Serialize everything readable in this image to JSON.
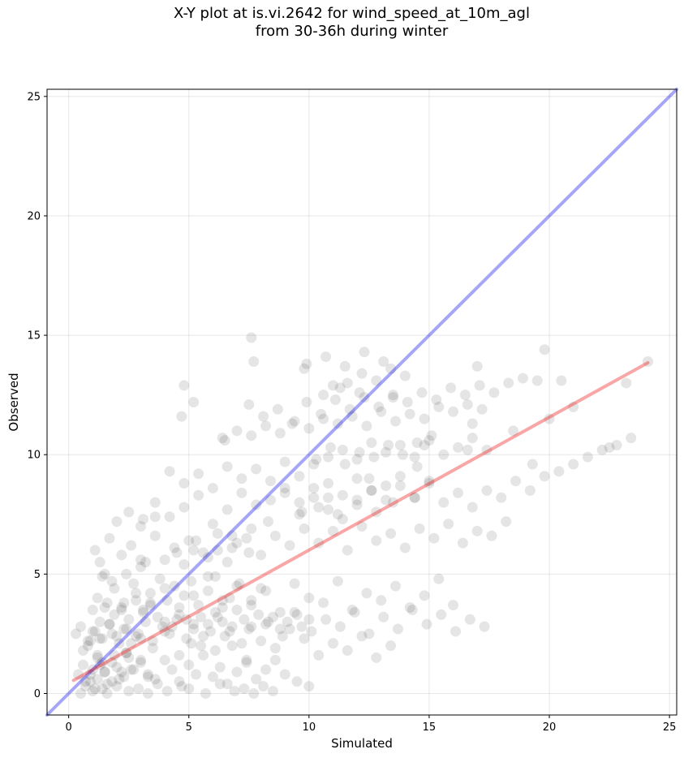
{
  "chart_data": {
    "type": "scatter",
    "title_lines": [
      "X-Y plot at is.vi.2642 for wind_speed_at_10m_agl",
      "from 30-36h during winter"
    ],
    "xlabel": "Simulated",
    "ylabel": "Observed",
    "xlim": [
      -0.9,
      25.3
    ],
    "ylim": [
      -0.9,
      25.3
    ],
    "xticks": [
      0,
      5,
      10,
      15,
      20,
      25
    ],
    "yticks": [
      0,
      5,
      10,
      15,
      20,
      25
    ],
    "grid": true,
    "point_color": "#000000",
    "point_alpha": 0.1,
    "series": [
      {
        "type": "scatter",
        "x": [
          1.0,
          1.2,
          1.4,
          1.5,
          1.8,
          2.0,
          2.3,
          2.5,
          0.7,
          0.9,
          1.1,
          1.3,
          1.6,
          1.9,
          2.2,
          2.6,
          3.0,
          3.3,
          3.6,
          4.0,
          4.3,
          4.6,
          5.0,
          5.3,
          5.6,
          6.0,
          6.3,
          6.6,
          7.0,
          7.4,
          7.8,
          8.2,
          8.6,
          9.0,
          9.5,
          10.0,
          0.8,
          1.0,
          1.3,
          1.7,
          2.1,
          2.4,
          2.8,
          3.2,
          3.5,
          3.9,
          4.2,
          4.5,
          4.9,
          5.2,
          5.5,
          5.9,
          6.2,
          6.5,
          6.8,
          7.2,
          7.5,
          1.2,
          1.5,
          1.9,
          2.3,
          2.7,
          3.1,
          3.4,
          3.8,
          4.1,
          4.4,
          4.8,
          5.1,
          5.4,
          5.8,
          6.1,
          6.4,
          6.7,
          7.1,
          7.6,
          8.0,
          0.5,
          0.7,
          1.0,
          1.4,
          1.6,
          2.0,
          2.5,
          2.9,
          3.3,
          3.7,
          4.1,
          4.7,
          5.0,
          5.7,
          6.3,
          6.9,
          7.3,
          7.7,
          8.1,
          8.5,
          1.1,
          1.3,
          1.7,
          2.2,
          2.6,
          3.0,
          3.6,
          4.0,
          4.4,
          4.8,
          5.3,
          5.8,
          6.2,
          6.6,
          7.0,
          7.5,
          0.6,
          0.9,
          1.2,
          1.8,
          2.4,
          3.0,
          3.5,
          4.0,
          4.6,
          5.1,
          5.6,
          6.1,
          6.8,
          7.4,
          8.0,
          8.6,
          9.2,
          9.8,
          10.4,
          11.0,
          11.6,
          12.2,
          12.8,
          13.4,
          1.5,
          2.0,
          2.5,
          3.0,
          3.6,
          4.2,
          4.8,
          5.4,
          6.0,
          6.6,
          7.2,
          7.8,
          8.4,
          9.0,
          9.6,
          10.2,
          10.8,
          11.4,
          12.0,
          12.6,
          13.2,
          13.8,
          14.4,
          15.0,
          2.2,
          2.8,
          3.4,
          4.0,
          4.6,
          5.2,
          5.8,
          6.4,
          7.0,
          7.6,
          8.2,
          8.8,
          9.4,
          10.0,
          10.6,
          11.2,
          11.8,
          12.4,
          13.0,
          13.6,
          14.2,
          14.8,
          15.4,
          16.0,
          3.0,
          3.6,
          4.2,
          4.8,
          5.4,
          6.0,
          6.6,
          7.2,
          7.8,
          8.4,
          9.0,
          9.6,
          10.2,
          10.8,
          11.4,
          12.0,
          12.6,
          13.2,
          13.8,
          14.4,
          15.0,
          15.6,
          16.2,
          16.8,
          17.4,
          5.0,
          5.6,
          6.2,
          6.8,
          7.4,
          8.0,
          8.6,
          9.2,
          9.8,
          10.4,
          11.0,
          11.6,
          12.2,
          12.8,
          13.4,
          14.0,
          14.6,
          15.2,
          15.8,
          16.4,
          17.0,
          17.6,
          18.2,
          6.5,
          7.0,
          7.6,
          8.2,
          8.8,
          9.4,
          10.0,
          10.6,
          11.2,
          11.8,
          12.4,
          13.0,
          13.6,
          14.2,
          14.8,
          15.4,
          16.0,
          16.6,
          17.2,
          7.5,
          8.1,
          8.7,
          9.3,
          9.9,
          10.5,
          11.1,
          11.7,
          12.3,
          12.9,
          13.5,
          14.1,
          14.7,
          15.3,
          15.9,
          16.5,
          17.1,
          17.7,
          18.3,
          18.9,
          19.5,
          8.3,
          8.9,
          9.5,
          10.1,
          10.7,
          11.3,
          11.9,
          12.5,
          13.1,
          13.7,
          14.3,
          14.9,
          15.5,
          16.1,
          16.7,
          17.3,
          9.0,
          9.6,
          10.2,
          10.8,
          11.4,
          12.0,
          12.6,
          13.2,
          13.8,
          14.4,
          15.0,
          15.6,
          16.2,
          16.8,
          17.4,
          18.0,
          18.6,
          19.2,
          19.8,
          20.4,
          21.0,
          21.6,
          22.2,
          22.8,
          23.4,
          24.1,
          10.3,
          10.9,
          11.5,
          12.1,
          12.7,
          13.3,
          13.9,
          14.5,
          11.0,
          11.6,
          12.2,
          12.8,
          13.4,
          14.0,
          10.4,
          11.2,
          12.0,
          12.8,
          13.5,
          10.7,
          11.5,
          12.3,
          13.1,
          9.9,
          10.6,
          11.3,
          12.1,
          0.4,
          0.6,
          0.9,
          1.2,
          1.5,
          1.8,
          2.1,
          2.4,
          2.7,
          3.0,
          3.3,
          0.3,
          0.5,
          0.8,
          1.1,
          1.4,
          1.7,
          2.0,
          2.3,
          2.6,
          2.9,
          1.0,
          1.3,
          1.6,
          1.9,
          2.2,
          2.5,
          2.8,
          3.1,
          3.4,
          3.7,
          4.0,
          4.3,
          4.6,
          4.9,
          5.2,
          5.5,
          5.8,
          6.1,
          6.4,
          6.7,
          7.0,
          7.3,
          7.6,
          7.9,
          8.2,
          8.5,
          8.8,
          9.1,
          9.4,
          9.7,
          10.0,
          1.8,
          2.4,
          3.2,
          4.5,
          5.2,
          6.8,
          7.6,
          8.3,
          9.7,
          10.8,
          12.5,
          14.5,
          16.6,
          18.5,
          20.0,
          21.0,
          23.2,
          4.7,
          4.8,
          5.2,
          7.6,
          7.7,
          14.8,
          15.1,
          16.8,
          19.8,
          20.5,
          1.4,
          3.1,
          6.4,
          9.8,
          13.5,
          17.0,
          19.3,
          22.5
        ],
        "y": [
          1.0,
          0.6,
          1.3,
          0.9,
          0.5,
          1.1,
          0.7,
          1.5,
          0.3,
          0.8,
          0.2,
          1.2,
          0.4,
          1.6,
          0.9,
          1.0,
          1.3,
          0.8,
          0.6,
          1.4,
          1.0,
          0.5,
          1.2,
          0.8,
          1.6,
          0.7,
          1.1,
          0.4,
          0.9,
          1.3,
          0.6,
          1.0,
          1.4,
          0.8,
          0.5,
          0.3,
          2.0,
          2.6,
          2.3,
          2.9,
          2.1,
          2.7,
          2.4,
          3.0,
          2.2,
          2.8,
          2.5,
          3.1,
          2.3,
          2.9,
          2.0,
          2.6,
          3.2,
          2.4,
          2.8,
          2.1,
          2.7,
          4.0,
          3.6,
          4.4,
          3.8,
          4.6,
          3.5,
          4.2,
          4.8,
          3.9,
          4.5,
          4.1,
          4.7,
          3.7,
          4.3,
          4.9,
          3.6,
          4.0,
          4.6,
          3.9,
          4.4,
          0.0,
          0.5,
          0.1,
          0.2,
          0.0,
          0.3,
          0.1,
          0.2,
          0.0,
          0.4,
          0.1,
          0.3,
          0.2,
          0.0,
          0.4,
          0.1,
          0.2,
          0.0,
          0.3,
          0.1,
          6.0,
          5.5,
          6.5,
          5.8,
          6.2,
          5.3,
          6.6,
          5.6,
          6.1,
          5.4,
          6.4,
          5.7,
          6.0,
          5.5,
          6.3,
          5.9,
          1.8,
          2.2,
          1.5,
          2.5,
          1.7,
          2.3,
          1.9,
          2.6,
          1.6,
          2.1,
          2.4,
          1.8,
          2.0,
          1.4,
          2.2,
          1.9,
          2.7,
          2.3,
          1.6,
          2.1,
          1.8,
          2.4,
          1.5,
          2.0,
          5.0,
          7.2,
          7.6,
          7.0,
          8.0,
          7.4,
          7.8,
          8.3,
          7.1,
          7.7,
          8.4,
          7.9,
          8.1,
          8.6,
          7.5,
          8.2,
          8.8,
          7.3,
          9.0,
          8.5,
          8.7,
          9.1,
          8.2,
          8.9,
          3.5,
          4.2,
          3.8,
          4.4,
          3.6,
          4.1,
          4.9,
          3.9,
          4.5,
          3.7,
          4.3,
          3.4,
          4.6,
          4.0,
          3.8,
          4.7,
          3.5,
          4.2,
          3.9,
          4.5,
          3.6,
          4.1,
          4.8,
          3.7,
          5.6,
          7.4,
          9.3,
          8.8,
          9.2,
          8.6,
          9.5,
          9.0,
          9.4,
          8.9,
          9.7,
          9.1,
          9.6,
          9.9,
          10.2,
          9.8,
          10.5,
          10.1,
          10.4,
          9.9,
          10.6,
          10.0,
          10.3,
          10.7,
          10.2,
          6.4,
          5.9,
          6.7,
          6.1,
          6.5,
          5.8,
          6.6,
          6.2,
          6.9,
          6.3,
          6.8,
          6.0,
          7.0,
          6.4,
          6.7,
          6.1,
          6.9,
          6.5,
          7.1,
          6.3,
          6.8,
          6.6,
          7.2,
          10.6,
          11.0,
          10.8,
          11.2,
          10.9,
          11.4,
          11.1,
          11.5,
          11.3,
          11.6,
          11.2,
          11.8,
          11.4,
          11.7,
          11.5,
          12.0,
          11.8,
          12.1,
          11.9,
          12.1,
          11.6,
          11.9,
          11.3,
          12.2,
          11.7,
          12.3,
          11.9,
          12.4,
          12.0,
          12.5,
          12.2,
          12.6,
          12.3,
          12.8,
          12.5,
          12.9,
          12.6,
          13.0,
          13.2,
          13.1,
          3.0,
          2.4,
          3.3,
          2.6,
          3.1,
          2.8,
          3.4,
          2.5,
          3.2,
          2.7,
          3.5,
          2.9,
          3.3,
          2.6,
          3.1,
          2.8,
          8.4,
          8.0,
          8.6,
          7.7,
          8.3,
          7.9,
          8.5,
          8.1,
          8.7,
          8.2,
          8.8,
          8.0,
          8.4,
          7.8,
          8.5,
          8.2,
          8.9,
          8.5,
          9.1,
          9.3,
          9.6,
          9.9,
          10.2,
          10.4,
          10.7,
          13.9,
          9.8,
          10.3,
          9.6,
          10.1,
          9.9,
          10.4,
          10.0,
          10.5,
          12.9,
          13.0,
          13.4,
          13.1,
          13.6,
          13.3,
          7.8,
          7.5,
          8.1,
          7.6,
          8.0,
          14.1,
          13.7,
          14.3,
          13.9,
          13.8,
          12.5,
          12.8,
          12.6,
          0.8,
          1.2,
          0.5,
          1.6,
          0.9,
          1.3,
          0.6,
          1.7,
          1.0,
          1.4,
          0.7,
          2.5,
          2.8,
          2.2,
          2.6,
          2.3,
          2.9,
          2.4,
          2.7,
          2.1,
          2.5,
          3.5,
          3.0,
          3.8,
          3.3,
          3.6,
          3.1,
          3.9,
          3.4,
          3.7,
          3.2,
          3.0,
          2.8,
          3.3,
          3.1,
          2.7,
          3.2,
          2.9,
          3.4,
          3.0,
          2.6,
          3.5,
          3.1,
          2.8,
          3.3,
          2.9,
          3.2,
          2.7,
          3.0,
          3.4,
          2.8,
          3.1,
          4.7,
          5.0,
          5.5,
          5.9,
          6.0,
          6.6,
          6.9,
          7.2,
          7.6,
          8.2,
          9.0,
          9.5,
          10.2,
          11.0,
          11.5,
          12.0,
          13.0,
          11.6,
          12.9,
          12.2,
          14.9,
          13.9,
          10.4,
          10.8,
          11.3,
          14.4,
          13.1,
          4.9,
          7.3,
          10.7,
          13.6,
          12.4,
          13.7,
          9.6,
          10.3
        ]
      },
      {
        "type": "line",
        "name": "",
        "x": [
          -0.9,
          25.3
        ],
        "y": [
          -0.9,
          25.3
        ],
        "color": "#0000ee",
        "alpha": 0.35
      },
      {
        "type": "line",
        "name": "",
        "x": [
          0.2,
          24.1
        ],
        "y": [
          0.55,
          13.85
        ],
        "color": "#ee0000",
        "alpha": 0.35
      }
    ]
  }
}
